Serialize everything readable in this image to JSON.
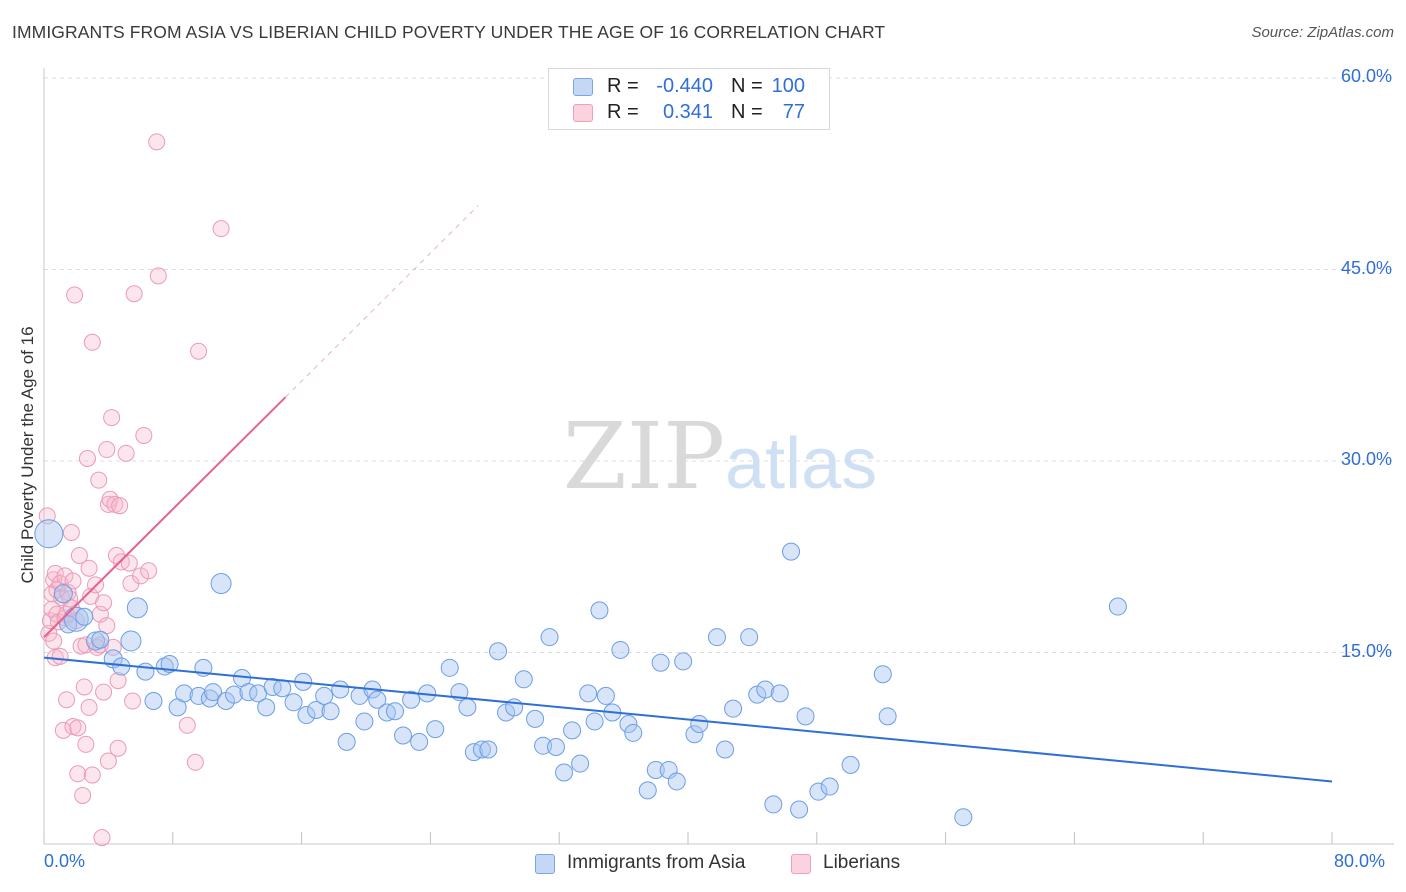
{
  "title": "IMMIGRANTS FROM ASIA VS LIBERIAN CHILD POVERTY UNDER THE AGE OF 16 CORRELATION CHART",
  "source": "Source: ZipAtlas.com",
  "watermark": "ZIPatlas",
  "legend_top": {
    "rows": [
      {
        "r_label": "R =",
        "r_value": "-0.440",
        "n_label": "N =",
        "n_value": "100",
        "color": "#a9c6ef"
      },
      {
        "r_label": "R =",
        "r_value": "0.341",
        "n_label": "N =",
        "n_value": "77",
        "color": "#f5b8cb"
      }
    ]
  },
  "chart_data": {
    "type": "scatter",
    "title": "IMMIGRANTS FROM ASIA VS LIBERIAN CHILD POVERTY UNDER THE AGE OF 16 CORRELATION CHART",
    "xlabel": "",
    "ylabel": "Child Poverty Under the Age of 16",
    "xlim": [
      0,
      80
    ],
    "ylim": [
      0,
      60
    ],
    "x_tick_labels": [
      "0.0%",
      "80.0%"
    ],
    "y_tick_values": [
      15,
      30,
      45,
      60
    ],
    "y_tick_labels": [
      "15.0%",
      "30.0%",
      "45.0%",
      "60.0%"
    ],
    "grid": "horizontal dashed",
    "legend_placement": "bottom-center",
    "colors": {
      "asia": "#6b9ee6",
      "asia_fill": "#a9c6ef",
      "liberians": "#ec86a8",
      "liberians_fill": "#f5b8cb",
      "asia_line": "#2f6fd6",
      "liberians_line": "#e8608c"
    },
    "series": [
      {
        "name": "Immigrants from Asia",
        "trend": {
          "x": [
            0,
            80
          ],
          "y": [
            14.6,
            4.9
          ]
        },
        "points": [
          [
            0.3,
            24.3
          ],
          [
            1.2,
            19.6
          ],
          [
            1.5,
            17.2
          ],
          [
            2.0,
            17.6
          ],
          [
            2.5,
            17.8
          ],
          [
            3.2,
            15.9
          ],
          [
            3.5,
            16.0
          ],
          [
            4.3,
            14.5
          ],
          [
            4.8,
            13.9
          ],
          [
            5.4,
            15.9
          ],
          [
            5.8,
            18.5
          ],
          [
            6.3,
            13.5
          ],
          [
            6.8,
            11.2
          ],
          [
            7.5,
            13.9
          ],
          [
            7.8,
            14.1
          ],
          [
            8.3,
            10.7
          ],
          [
            8.7,
            11.8
          ],
          [
            9.6,
            11.6
          ],
          [
            9.9,
            13.8
          ],
          [
            10.3,
            11.4
          ],
          [
            10.5,
            11.9
          ],
          [
            11.0,
            20.4
          ],
          [
            11.3,
            11.2
          ],
          [
            11.8,
            11.7
          ],
          [
            12.3,
            13.0
          ],
          [
            12.7,
            11.9
          ],
          [
            13.3,
            11.8
          ],
          [
            13.8,
            10.7
          ],
          [
            14.2,
            12.3
          ],
          [
            14.8,
            12.2
          ],
          [
            15.5,
            11.1
          ],
          [
            16.1,
            12.7
          ],
          [
            16.3,
            10.1
          ],
          [
            16.9,
            10.5
          ],
          [
            17.4,
            11.6
          ],
          [
            17.8,
            10.4
          ],
          [
            18.4,
            12.1
          ],
          [
            18.8,
            8.0
          ],
          [
            19.6,
            11.6
          ],
          [
            19.9,
            9.6
          ],
          [
            20.4,
            12.1
          ],
          [
            20.7,
            11.3
          ],
          [
            21.3,
            10.3
          ],
          [
            21.8,
            10.4
          ],
          [
            22.3,
            8.5
          ],
          [
            22.8,
            11.3
          ],
          [
            23.3,
            8.0
          ],
          [
            23.8,
            11.8
          ],
          [
            24.3,
            9.0
          ],
          [
            25.2,
            13.8
          ],
          [
            25.8,
            11.9
          ],
          [
            26.3,
            10.7
          ],
          [
            26.7,
            7.2
          ],
          [
            27.2,
            7.4
          ],
          [
            27.6,
            7.4
          ],
          [
            28.2,
            15.1
          ],
          [
            28.7,
            10.3
          ],
          [
            29.2,
            10.7
          ],
          [
            29.8,
            12.9
          ],
          [
            30.5,
            9.8
          ],
          [
            31.0,
            7.7
          ],
          [
            31.4,
            16.2
          ],
          [
            31.8,
            7.6
          ],
          [
            32.3,
            5.6
          ],
          [
            32.8,
            8.9
          ],
          [
            33.3,
            6.3
          ],
          [
            33.8,
            11.8
          ],
          [
            34.2,
            9.6
          ],
          [
            34.5,
            18.3
          ],
          [
            34.9,
            11.6
          ],
          [
            35.3,
            10.3
          ],
          [
            35.8,
            15.2
          ],
          [
            36.3,
            9.4
          ],
          [
            36.6,
            8.7
          ],
          [
            37.5,
            4.2
          ],
          [
            38.0,
            5.8
          ],
          [
            38.3,
            14.2
          ],
          [
            38.8,
            5.8
          ],
          [
            39.3,
            4.9
          ],
          [
            39.7,
            14.3
          ],
          [
            40.4,
            8.6
          ],
          [
            40.7,
            9.4
          ],
          [
            41.8,
            16.2
          ],
          [
            42.3,
            7.4
          ],
          [
            42.8,
            10.6
          ],
          [
            43.8,
            16.2
          ],
          [
            44.3,
            11.7
          ],
          [
            44.8,
            12.1
          ],
          [
            45.3,
            3.1
          ],
          [
            45.7,
            11.8
          ],
          [
            46.4,
            22.9
          ],
          [
            46.9,
            2.7
          ],
          [
            47.3,
            10.0
          ],
          [
            48.1,
            4.1
          ],
          [
            48.8,
            4.5
          ],
          [
            50.1,
            6.2
          ],
          [
            52.1,
            13.3
          ],
          [
            52.4,
            10.0
          ],
          [
            57.1,
            2.1
          ],
          [
            66.7,
            18.6
          ]
        ]
      },
      {
        "name": "Liberians",
        "trend": {
          "x": [
            0,
            15
          ],
          "y": [
            16.2,
            35.0
          ]
        },
        "points": [
          [
            0.2,
            25.7
          ],
          [
            0.3,
            16.5
          ],
          [
            0.4,
            17.5
          ],
          [
            0.5,
            18.4
          ],
          [
            0.5,
            19.6
          ],
          [
            0.6,
            20.7
          ],
          [
            0.6,
            15.9
          ],
          [
            0.7,
            14.6
          ],
          [
            0.7,
            21.2
          ],
          [
            0.8,
            19.9
          ],
          [
            0.8,
            18.0
          ],
          [
            0.9,
            17.4
          ],
          [
            1.0,
            14.7
          ],
          [
            1.0,
            20.4
          ],
          [
            1.1,
            19.3
          ],
          [
            1.2,
            8.9
          ],
          [
            1.3,
            17.7
          ],
          [
            1.3,
            21.0
          ],
          [
            1.4,
            18.0
          ],
          [
            1.4,
            11.3
          ],
          [
            1.5,
            19.7
          ],
          [
            1.6,
            19.2
          ],
          [
            1.7,
            24.4
          ],
          [
            1.7,
            18.5
          ],
          [
            1.8,
            20.6
          ],
          [
            1.8,
            9.2
          ],
          [
            1.9,
            43.0
          ],
          [
            2.0,
            17.5
          ],
          [
            2.1,
            5.5
          ],
          [
            2.1,
            9.1
          ],
          [
            2.2,
            22.6
          ],
          [
            2.3,
            15.5
          ],
          [
            2.4,
            3.8
          ],
          [
            2.5,
            12.3
          ],
          [
            2.6,
            15.6
          ],
          [
            2.6,
            7.8
          ],
          [
            2.7,
            30.2
          ],
          [
            2.8,
            21.6
          ],
          [
            2.8,
            10.7
          ],
          [
            2.9,
            19.4
          ],
          [
            3.0,
            39.3
          ],
          [
            3.0,
            5.4
          ],
          [
            3.2,
            20.3
          ],
          [
            3.3,
            15.4
          ],
          [
            3.4,
            28.5
          ],
          [
            3.5,
            18.0
          ],
          [
            3.5,
            15.6
          ],
          [
            3.6,
            0.5
          ],
          [
            3.7,
            18.9
          ],
          [
            3.7,
            11.9
          ],
          [
            3.9,
            17.1
          ],
          [
            3.9,
            30.9
          ],
          [
            4.0,
            26.6
          ],
          [
            4.0,
            6.5
          ],
          [
            4.1,
            27.0
          ],
          [
            4.2,
            33.4
          ],
          [
            4.3,
            15.4
          ],
          [
            4.4,
            26.6
          ],
          [
            4.5,
            22.6
          ],
          [
            4.6,
            12.8
          ],
          [
            4.6,
            7.5
          ],
          [
            4.7,
            26.5
          ],
          [
            4.8,
            22.1
          ],
          [
            5.1,
            30.6
          ],
          [
            5.3,
            22.0
          ],
          [
            5.4,
            20.4
          ],
          [
            5.5,
            11.2
          ],
          [
            5.6,
            43.1
          ],
          [
            6.0,
            21.0
          ],
          [
            6.2,
            32.0
          ],
          [
            6.5,
            21.4
          ],
          [
            7.0,
            55.0
          ],
          [
            7.1,
            44.5
          ],
          [
            8.9,
            9.3
          ],
          [
            9.4,
            6.4
          ],
          [
            9.6,
            38.6
          ],
          [
            11.0,
            48.2
          ]
        ]
      }
    ]
  },
  "legend_bottom": [
    {
      "label": "Immigrants from Asia",
      "color": "#a9c6ef"
    },
    {
      "label": "Liberians",
      "color": "#f5b8cb"
    }
  ]
}
